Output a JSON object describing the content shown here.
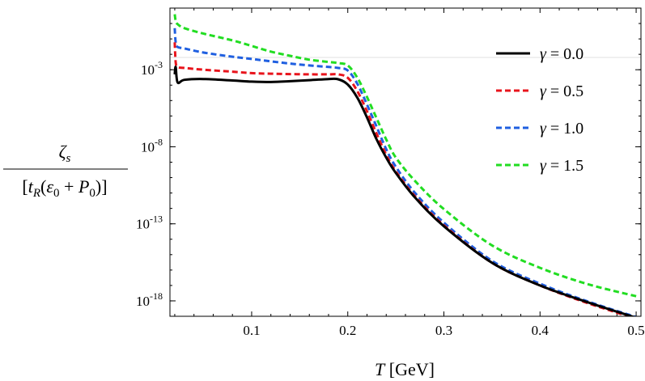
{
  "chart_data": {
    "type": "line",
    "title": "",
    "xlabel": "T [GeV]",
    "ylabel": "ζs / [tR(ε0 + P0)]",
    "ylabel_parts": {
      "numerator": "ζ",
      "numerator_sub": "s",
      "den_open": "[",
      "den_t": "t",
      "den_t_sub": "R",
      "den_paren_open": "(",
      "den_eps": "ε",
      "den_eps_sub": "0",
      "den_plus": " + ",
      "den_p": "P",
      "den_p_sub": "0",
      "den_close": ")]"
    },
    "xlim": [
      0.015,
      0.505
    ],
    "ylim": [
      1e-19,
      10.0
    ],
    "yscale": "log",
    "x_ticks": [
      {
        "value": 0.1,
        "label": "0.1"
      },
      {
        "value": 0.2,
        "label": "0.2"
      },
      {
        "value": 0.3,
        "label": "0.3"
      },
      {
        "value": 0.4,
        "label": "0.4"
      },
      {
        "value": 0.5,
        "label": "0.5"
      }
    ],
    "y_ticks": [
      {
        "value": 0.001,
        "base": "10",
        "exp": "-3"
      },
      {
        "value": 1e-08,
        "base": "10",
        "exp": "-8"
      },
      {
        "value": 1e-13,
        "base": "10",
        "exp": "-13"
      },
      {
        "value": 1e-18,
        "base": "10",
        "exp": "-18"
      }
    ],
    "legend_position": "top-right",
    "grid": false,
    "series": [
      {
        "name": "γ = 0.0",
        "legend_symbol": "γ",
        "legend_value": " = 0.0",
        "color": "#000000",
        "dash": "solid",
        "x": [
          0.02,
          0.021,
          0.023,
          0.03,
          0.05,
          0.08,
          0.1,
          0.12,
          0.14,
          0.16,
          0.18,
          0.19,
          0.2,
          0.21,
          0.22,
          0.23,
          0.24,
          0.25,
          0.27,
          0.3,
          0.35,
          0.4,
          0.45,
          0.5
        ],
        "y": [
          0.0005,
          0.0015,
          0.00015,
          0.00022,
          0.00025,
          0.0002,
          0.00017,
          0.00016,
          0.00018,
          0.00021,
          0.00025,
          0.00024,
          0.00011,
          1.5e-05,
          8e-07,
          3e-08,
          2e-09,
          2e-10,
          5e-12,
          7e-14,
          3e-16,
          1e-17,
          8e-19,
          8e-20
        ]
      },
      {
        "name": "γ = 0.5",
        "legend_symbol": "γ",
        "legend_value": " = 0.5",
        "color": "#e8141c",
        "dash": "dashed",
        "x": [
          0.02,
          0.021,
          0.023,
          0.03,
          0.05,
          0.08,
          0.1,
          0.12,
          0.14,
          0.16,
          0.18,
          0.19,
          0.2,
          0.21,
          0.22,
          0.23,
          0.24,
          0.25,
          0.27,
          0.3,
          0.35,
          0.4,
          0.45,
          0.5
        ],
        "y": [
          0.06,
          0.003,
          0.0015,
          0.0013,
          0.001,
          0.00075,
          0.0006,
          0.00055,
          0.00052,
          0.0005,
          0.0005,
          0.0005,
          0.0003,
          4e-05,
          2e-06,
          7e-08,
          3e-09,
          2.5e-10,
          6e-12,
          8e-14,
          3e-16,
          1e-17,
          7e-19,
          7e-20
        ]
      },
      {
        "name": "γ = 1.0",
        "legend_symbol": "γ",
        "legend_value": " = 1.0",
        "color": "#1f5fe0",
        "dash": "dashed",
        "x": [
          0.02,
          0.021,
          0.023,
          0.03,
          0.05,
          0.08,
          0.1,
          0.12,
          0.14,
          0.16,
          0.18,
          0.19,
          0.2,
          0.21,
          0.22,
          0.23,
          0.24,
          0.25,
          0.27,
          0.3,
          0.35,
          0.4,
          0.45,
          0.5
        ],
        "y": [
          0.5,
          0.06,
          0.03,
          0.024,
          0.013,
          0.007,
          0.005,
          0.0035,
          0.0025,
          0.0019,
          0.0015,
          0.0013,
          0.0009,
          0.00012,
          5.5e-06,
          2e-07,
          7e-09,
          5e-10,
          1e-11,
          1.2e-13,
          4e-16,
          1.3e-17,
          9e-19,
          9e-20
        ]
      },
      {
        "name": "γ = 1.5",
        "legend_symbol": "γ",
        "legend_value": " = 1.5",
        "color": "#22dd22",
        "dash": "dashed",
        "x": [
          0.02,
          0.021,
          0.023,
          0.03,
          0.05,
          0.08,
          0.1,
          0.12,
          0.14,
          0.16,
          0.18,
          0.19,
          0.2,
          0.21,
          0.22,
          0.23,
          0.24,
          0.25,
          0.27,
          0.3,
          0.35,
          0.4,
          0.45,
          0.5
        ],
        "y": [
          4,
          1.5,
          0.9,
          0.5,
          0.22,
          0.08,
          0.035,
          0.015,
          0.008,
          0.0045,
          0.0032,
          0.0027,
          0.0019,
          0.0003,
          1.7e-05,
          7e-07,
          3e-08,
          2e-09,
          6e-11,
          9e-13,
          4e-15,
          1.4e-16,
          1.2e-17,
          2e-18
        ]
      }
    ]
  }
}
